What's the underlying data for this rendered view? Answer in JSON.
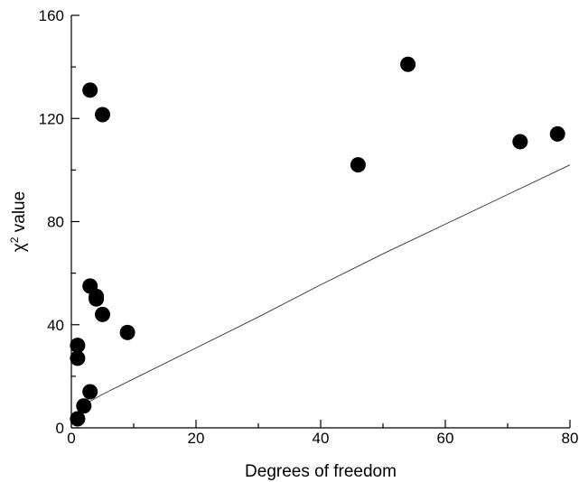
{
  "chart_data": {
    "type": "scatter",
    "xlabel": "Degrees of freedom",
    "ylabel": {
      "prefix": "χ",
      "superscript": "2",
      "suffix": " value"
    },
    "xlim": [
      0,
      80
    ],
    "ylim": [
      0,
      160
    ],
    "x_ticks": [
      0,
      20,
      40,
      60,
      80
    ],
    "y_ticks": [
      0,
      40,
      80,
      120,
      160
    ],
    "x_tick_labels": [
      "0",
      "20",
      "40",
      "60",
      "80"
    ],
    "y_tick_labels": [
      "0",
      "40",
      "80",
      "120",
      "160"
    ],
    "grid": false,
    "series": [
      {
        "type": "scatter",
        "color": "#000000",
        "points": [
          {
            "x": 1,
            "y": 3.5
          },
          {
            "x": 1,
            "y": 27
          },
          {
            "x": 1,
            "y": 32
          },
          {
            "x": 2,
            "y": 8.5
          },
          {
            "x": 3,
            "y": 14
          },
          {
            "x": 3,
            "y": 55
          },
          {
            "x": 3,
            "y": 131
          },
          {
            "x": 4,
            "y": 51
          },
          {
            "x": 4,
            "y": 50
          },
          {
            "x": 5,
            "y": 44
          },
          {
            "x": 5,
            "y": 121.5
          },
          {
            "x": 9,
            "y": 37
          },
          {
            "x": 46,
            "y": 102
          },
          {
            "x": 54,
            "y": 141
          },
          {
            "x": 72,
            "y": 111
          },
          {
            "x": 78,
            "y": 114
          }
        ]
      },
      {
        "type": "line",
        "color": "#333333",
        "points": [
          {
            "x": 1,
            "y": 6
          },
          {
            "x": 2,
            "y": 9
          },
          {
            "x": 5,
            "y": 13
          },
          {
            "x": 10,
            "y": 19
          },
          {
            "x": 20,
            "y": 31
          },
          {
            "x": 30,
            "y": 43
          },
          {
            "x": 40,
            "y": 55.5
          },
          {
            "x": 50,
            "y": 67.5
          },
          {
            "x": 60,
            "y": 79
          },
          {
            "x": 70,
            "y": 90.5
          },
          {
            "x": 80,
            "y": 102
          }
        ]
      }
    ]
  }
}
